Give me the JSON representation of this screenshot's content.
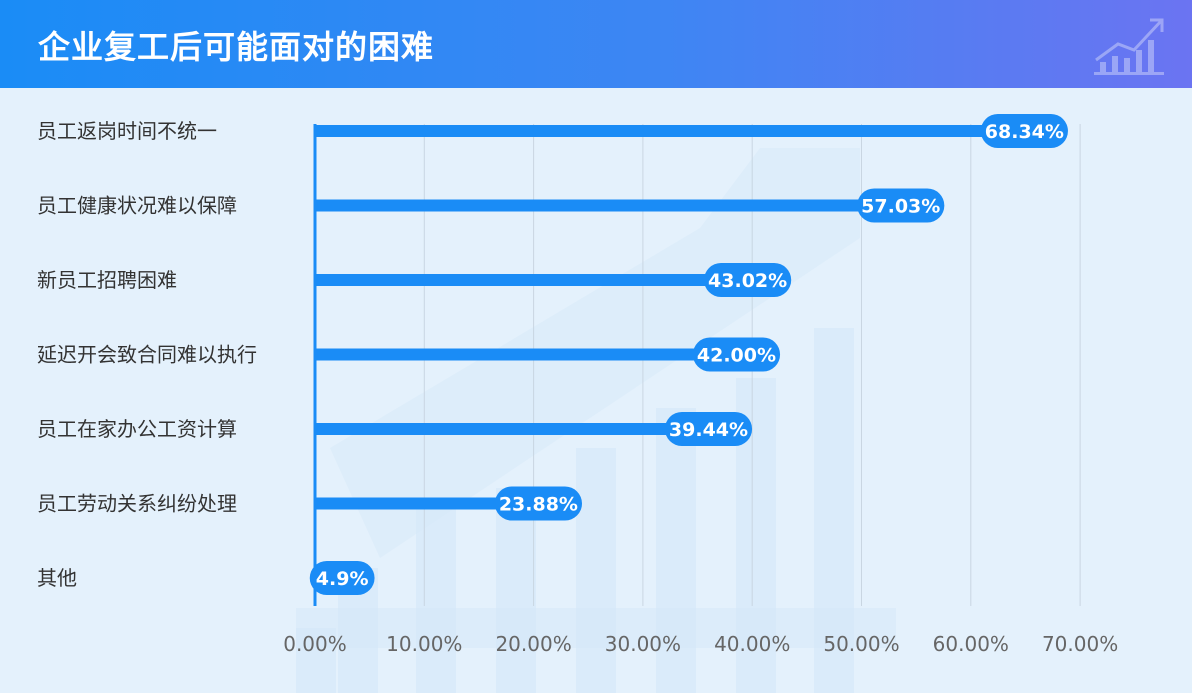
{
  "header": {
    "title": "企业复工后可能面对的困难"
  },
  "colors": {
    "bar": "#1a8cf6",
    "grid": "#c9d6e2",
    "axis": "#1a8cf6"
  },
  "chart_data": {
    "type": "bar",
    "orientation": "horizontal",
    "title": "企业复工后可能面对的困难",
    "categories": [
      "员工返岗时间不统一",
      "员工健康状况难以保障",
      "新员工招聘困难",
      "延迟开会致合同难以执行",
      "员工在家办公工资计算",
      "员工劳动关系纠纷处理",
      "其他"
    ],
    "values": [
      68.34,
      57.03,
      43.02,
      42.0,
      39.44,
      23.88,
      4.9
    ],
    "data_labels": [
      "68.34%",
      "57.03%",
      "43.02%",
      "42.00%",
      "39.44%",
      "23.88%",
      "4.9%"
    ],
    "xlim": [
      0,
      70
    ],
    "xticks": [
      0,
      10,
      20,
      30,
      40,
      50,
      60,
      70
    ],
    "xtick_labels": [
      "0.00%",
      "10.00%",
      "20.00%",
      "30.00%",
      "40.00%",
      "50.00%",
      "60.00%",
      "70.00%"
    ],
    "grid": "vertical",
    "legend": "none"
  }
}
